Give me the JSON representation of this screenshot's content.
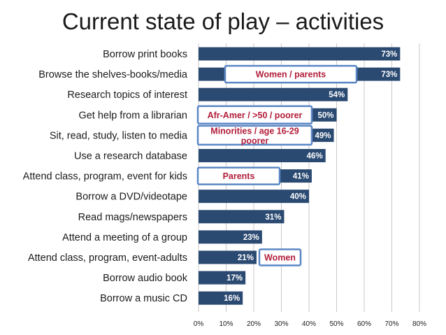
{
  "title": "Current state of play – activities",
  "chart_data": {
    "type": "bar",
    "orientation": "horizontal",
    "categories": [
      "Borrow print books",
      "Browse the shelves-books/media",
      "Research topics of interest",
      "Get help from a librarian",
      "Sit, read, study, listen to media",
      "Use a research database",
      "Attend class, program, event for kids",
      "Borrow a DVD/videotape",
      "Read mags/newspapers",
      "Attend a meeting of a group",
      "Attend class, program, event-adults",
      "Borrow audio book",
      "Borrow a music CD"
    ],
    "values": [
      73,
      73,
      54,
      50,
      49,
      46,
      41,
      40,
      31,
      23,
      21,
      17,
      16
    ],
    "value_labels": [
      "73%",
      "73%",
      "54%",
      "50%",
      "49%",
      "46%",
      "41%",
      "40%",
      "31%",
      "23%",
      "21%",
      "17%",
      "16%"
    ],
    "xlim": [
      0,
      80
    ],
    "ticks": [
      0,
      10,
      20,
      30,
      40,
      50,
      60,
      70,
      80
    ],
    "tick_labels": [
      "0%",
      "10%",
      "20%",
      "30%",
      "40%",
      "50%",
      "60%",
      "70%",
      "80%"
    ],
    "grid": true,
    "bar_color": "#2b4a72",
    "callouts": [
      {
        "row": 1,
        "text": "Women / parents"
      },
      {
        "row": 3,
        "text": "Afr-Amer / >50 / poorer"
      },
      {
        "row": 4,
        "text": "Minorities / age 16-29 poorer"
      },
      {
        "row": 6,
        "text": "Parents"
      },
      {
        "row": 10,
        "text": "Women"
      }
    ],
    "callout_text_color": "#b11d3a",
    "callout_border_color": "#5b87c5"
  }
}
